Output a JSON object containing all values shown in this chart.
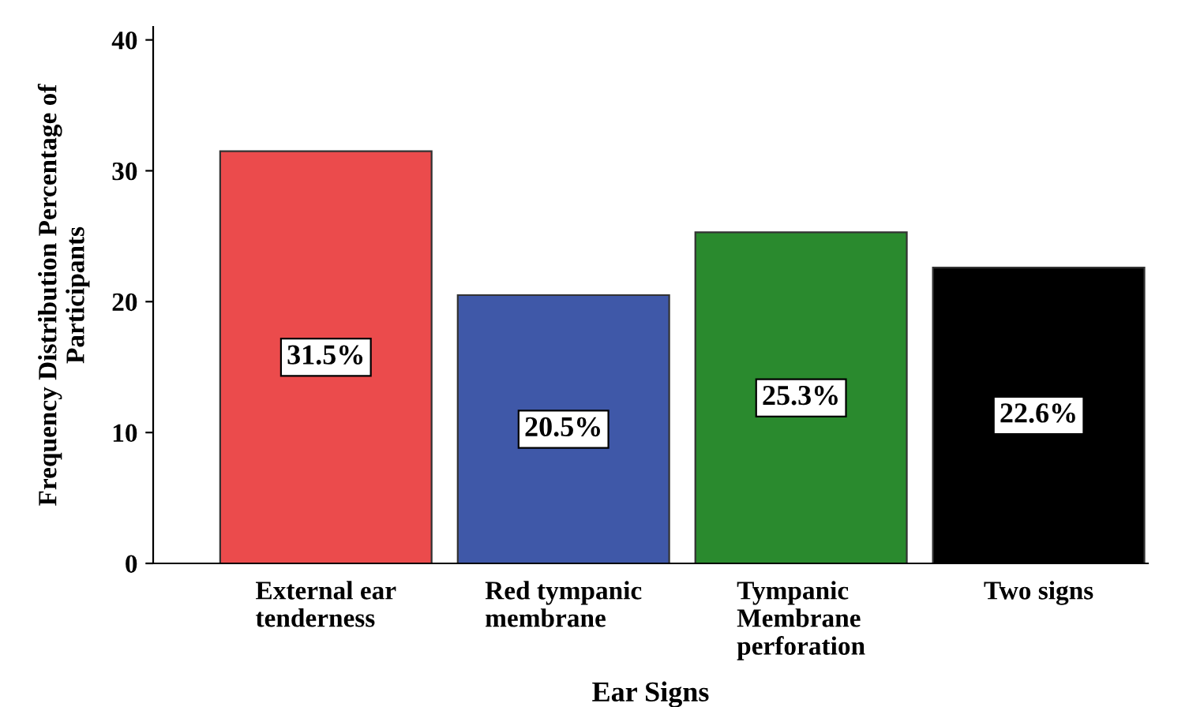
{
  "chart_data": {
    "type": "bar",
    "xlabel": "Ear Signs",
    "ylabel": "Frequency Distribution Percentage of\nParticipants",
    "categories": [
      "External ear\ntenderness",
      "Red tympanic\nmembrane",
      "Tympanic\nMembrane\nperforation",
      "Two signs"
    ],
    "values": [
      31.5,
      20.5,
      25.3,
      22.6
    ],
    "colors": [
      "#eb4b4c",
      "#3f58a8",
      "#2a8a2e",
      "#000000"
    ],
    "value_labels": [
      "31.5%",
      "20.5%",
      "25.3%",
      "22.6%"
    ],
    "ylim": [
      0,
      41
    ],
    "yticks": [
      0,
      10,
      20,
      30,
      40
    ],
    "grid": false
  }
}
